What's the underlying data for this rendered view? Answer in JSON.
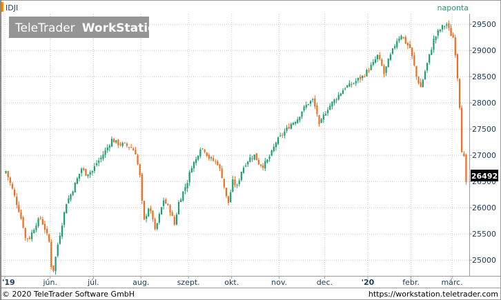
{
  "header": {
    "symbol": "IDJI",
    "period": "naponta",
    "logo_light": "TeleTrader",
    "logo_bold": "WorkStation"
  },
  "footer": {
    "copyright": "© 2020 TeleTrader Software GmbH",
    "url": "https://workstation.teletrader.com"
  },
  "colors": {
    "up": "#1aa06c",
    "down": "#f26a1c",
    "grid": "#c8c8c8",
    "accent": "#ff8c00"
  },
  "chart_data": {
    "type": "candlestick",
    "symbol": "IDJI",
    "ylim": [
      24700,
      29700
    ],
    "y_ticks": [
      25000,
      25500,
      26000,
      26500,
      27000,
      27500,
      28000,
      28500,
      29000,
      29500
    ],
    "x_ticks": [
      "'19",
      "jún.",
      "júl.",
      "aug.",
      "szept.",
      "okt.",
      "nov.",
      "dec.",
      "'20",
      "febr.",
      "márc."
    ],
    "last_value": "26492",
    "anchors": [
      [
        0,
        26700
      ],
      [
        3,
        26350
      ],
      [
        6,
        25950
      ],
      [
        8,
        25650
      ],
      [
        9,
        25420
      ],
      [
        11,
        25430
      ],
      [
        14,
        25700
      ],
      [
        16,
        25800
      ],
      [
        18,
        25600
      ],
      [
        20,
        25350
      ],
      [
        21,
        24900
      ],
      [
        22,
        24815
      ],
      [
        24,
        25300
      ],
      [
        26,
        25700
      ],
      [
        28,
        26100
      ],
      [
        30,
        26250
      ],
      [
        33,
        26550
      ],
      [
        35,
        26750
      ],
      [
        37,
        26650
      ],
      [
        40,
        26700
      ],
      [
        42,
        26850
      ],
      [
        44,
        26950
      ],
      [
        47,
        27150
      ],
      [
        49,
        27300
      ],
      [
        52,
        27220
      ],
      [
        55,
        27200
      ],
      [
        58,
        27150
      ],
      [
        60,
        27050
      ],
      [
        62,
        26600
      ],
      [
        63,
        26100
      ],
      [
        64,
        25750
      ],
      [
        66,
        26000
      ],
      [
        68,
        25800
      ],
      [
        69,
        25550
      ],
      [
        71,
        25850
      ],
      [
        73,
        26150
      ],
      [
        76,
        25950
      ],
      [
        78,
        25680
      ],
      [
        80,
        26100
      ],
      [
        82,
        26300
      ],
      [
        84,
        26500
      ],
      [
        86,
        26800
      ],
      [
        88,
        26920
      ],
      [
        90,
        27150
      ],
      [
        92,
        27100
      ],
      [
        94,
        26950
      ],
      [
        96,
        26900
      ],
      [
        98,
        26850
      ],
      [
        100,
        26600
      ],
      [
        102,
        26200
      ],
      [
        103,
        26100
      ],
      [
        105,
        26500
      ],
      [
        107,
        26400
      ],
      [
        109,
        26700
      ],
      [
        111,
        26850
      ],
      [
        113,
        26950
      ],
      [
        115,
        27000
      ],
      [
        117,
        26850
      ],
      [
        119,
        26800
      ],
      [
        121,
        26900
      ],
      [
        123,
        27050
      ],
      [
        125,
        27250
      ],
      [
        127,
        27350
      ],
      [
        130,
        27500
      ],
      [
        132,
        27600
      ],
      [
        135,
        27700
      ],
      [
        137,
        27850
      ],
      [
        140,
        28000
      ],
      [
        142,
        28050
      ],
      [
        144,
        27800
      ],
      [
        145,
        27550
      ],
      [
        147,
        27750
      ],
      [
        149,
        27900
      ],
      [
        152,
        28050
      ],
      [
        155,
        28200
      ],
      [
        157,
        28300
      ],
      [
        160,
        28350
      ],
      [
        163,
        28450
      ],
      [
        165,
        28500
      ],
      [
        167,
        28600
      ],
      [
        170,
        28750
      ],
      [
        172,
        28900
      ],
      [
        174,
        28700
      ],
      [
        175,
        28550
      ],
      [
        177,
        28800
      ],
      [
        179,
        29000
      ],
      [
        181,
        29200
      ],
      [
        183,
        29300
      ],
      [
        185,
        29150
      ],
      [
        187,
        29050
      ],
      [
        189,
        28700
      ],
      [
        190,
        28500
      ],
      [
        192,
        28300
      ],
      [
        194,
        28600
      ],
      [
        196,
        28900
      ],
      [
        198,
        29200
      ],
      [
        200,
        29350
      ],
      [
        202,
        29450
      ],
      [
        204,
        29500
      ],
      [
        206,
        29300
      ],
      [
        207,
        29250
      ],
      [
        208,
        28950
      ],
      [
        209,
        28500
      ],
      [
        210,
        27950
      ],
      [
        211,
        27100
      ],
      [
        212,
        26950
      ],
      [
        213,
        26492
      ]
    ],
    "month_start_bars": [
      0,
      21,
      41,
      63,
      85,
      105,
      127,
      148,
      168,
      188,
      207
    ]
  }
}
